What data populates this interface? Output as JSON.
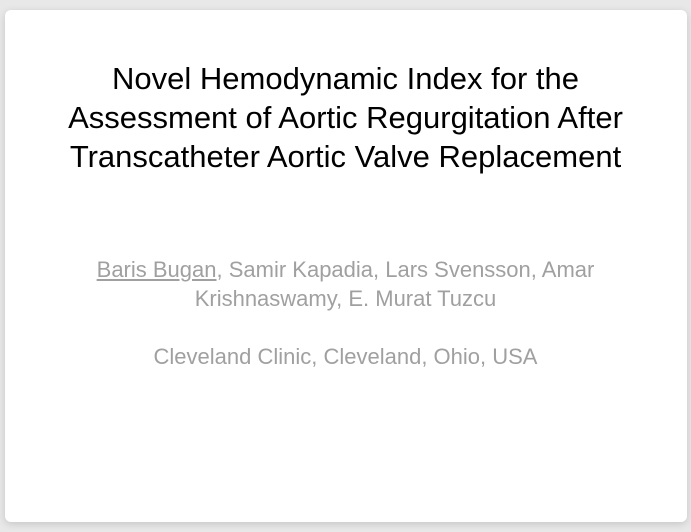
{
  "slide": {
    "title": "Novel Hemodynamic Index for the Assessment of Aortic Regurgitation After Transcatheter Aortic Valve Replacement",
    "presenter": "Baris Bugan",
    "coauthors": ", Samir Kapadia, Lars Svensson, Amar Krishnaswamy, E. Murat Tuzcu",
    "affiliation": "Cleveland Clinic, Cleveland, Ohio, USA",
    "styling": {
      "background_color": "#ffffff",
      "outer_background_color": "#e8e8e8",
      "title_color": "#000000",
      "title_fontsize": 31,
      "title_fontweight": 400,
      "author_color": "#a0a0a0",
      "author_fontsize": 22,
      "affiliation_color": "#a0a0a0",
      "affiliation_fontsize": 22,
      "slide_width": 682,
      "slide_height": 512,
      "border_radius": 6
    }
  }
}
